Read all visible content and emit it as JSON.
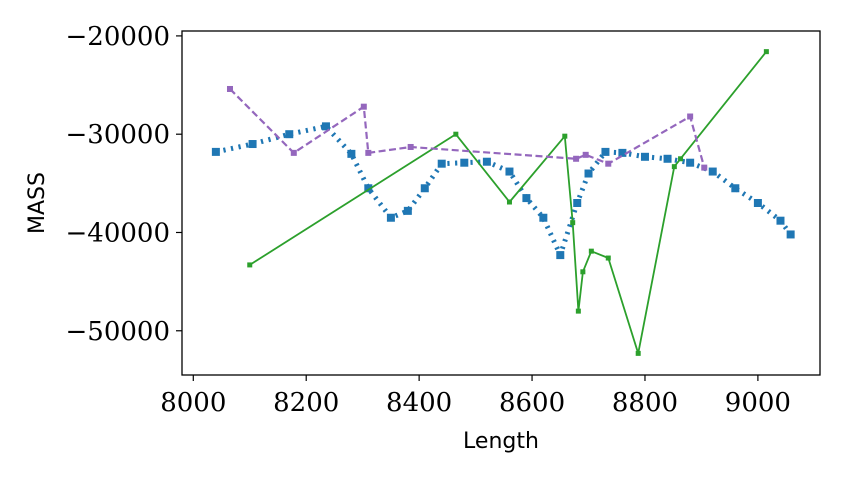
{
  "chart_data": {
    "type": "line",
    "title": "",
    "xlabel": "Length",
    "ylabel": "MASS",
    "xlim": [
      7980,
      9110
    ],
    "ylim": [
      -54500,
      -19500
    ],
    "xticks": [
      8000,
      8200,
      8400,
      8600,
      8800,
      9000
    ],
    "yticks": [
      -20000,
      -30000,
      -40000,
      -50000
    ],
    "xtick_labels": [
      "8000",
      "8200",
      "8400",
      "8600",
      "8800",
      "9000"
    ],
    "ytick_labels": [
      "−20000",
      "−30000",
      "−40000",
      "−50000"
    ],
    "grid": false,
    "legend": "none",
    "series": [
      {
        "color": "#1f77b4",
        "line_style": "dotted",
        "marker": "square",
        "x": [
          8040,
          8105,
          8170,
          8235,
          8280,
          8310,
          8350,
          8380,
          8410,
          8440,
          8480,
          8520,
          8560,
          8590,
          8620,
          8650,
          8680,
          8700,
          8730,
          8760,
          8800,
          8840,
          8880,
          8920,
          8960,
          9000,
          9040,
          9058
        ],
        "y": [
          -31800,
          -31000,
          -30000,
          -29200,
          -32000,
          -35500,
          -38500,
          -37800,
          -35500,
          -33000,
          -32900,
          -32800,
          -33800,
          -36500,
          -38500,
          -42300,
          -37000,
          -34000,
          -31800,
          -31900,
          -32300,
          -32500,
          -32900,
          -33800,
          -35500,
          -37000,
          -38800,
          -40200
        ]
      },
      {
        "color": "#2ca02c",
        "line_style": "solid",
        "marker": "square",
        "x": [
          8100,
          8465,
          8560,
          8658,
          8672,
          8682,
          8690,
          8705,
          8735,
          8788,
          8852,
          8863,
          9015
        ],
        "y": [
          -43300,
          -30000,
          -36900,
          -30200,
          -39000,
          -48000,
          -44000,
          -41900,
          -42600,
          -52300,
          -33300,
          -32500,
          -21600
        ]
      },
      {
        "color": "#9467bd",
        "line_style": "dashed",
        "marker": "square",
        "x": [
          8065,
          8178,
          8302,
          8310,
          8385,
          8678,
          8695,
          8735,
          8880,
          8905
        ],
        "y": [
          -25400,
          -31900,
          -27200,
          -31900,
          -31300,
          -32500,
          -32100,
          -33000,
          -28200,
          -33400
        ]
      }
    ]
  }
}
